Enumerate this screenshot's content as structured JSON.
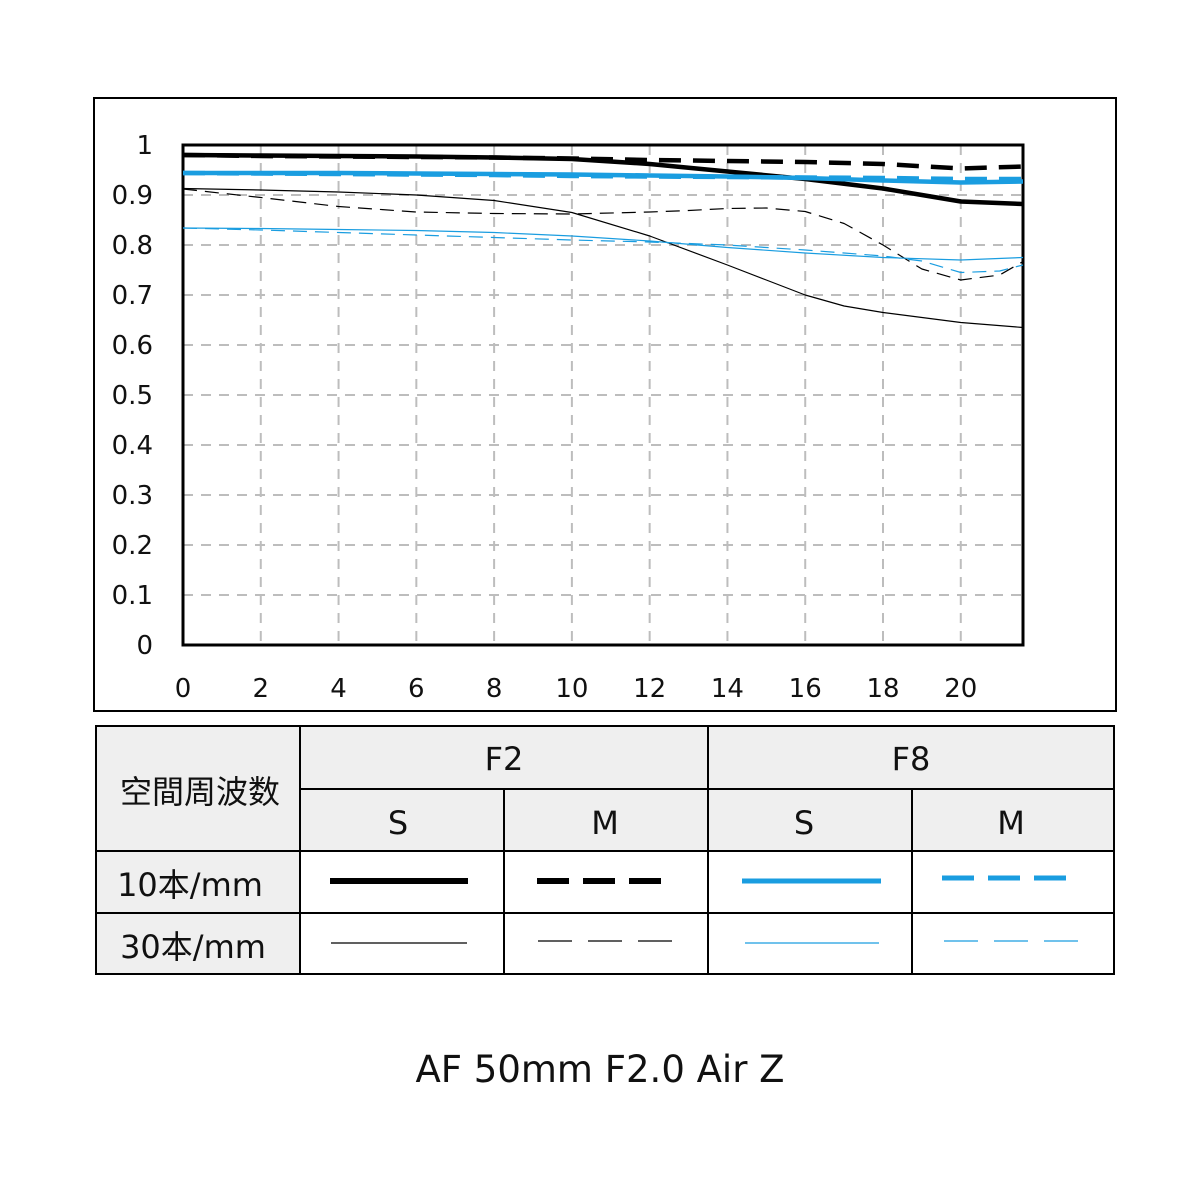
{
  "chart_data": {
    "type": "line",
    "title": "",
    "xlabel": "",
    "ylabel": "",
    "xlim": [
      0,
      21.6
    ],
    "ylim": [
      0,
      1
    ],
    "x_ticks": [
      "0",
      "2",
      "4",
      "6",
      "8",
      "10",
      "12",
      "14",
      "16",
      "18",
      "20"
    ],
    "y_ticks": [
      "0",
      "0.1",
      "0.2",
      "0.3",
      "0.4",
      "0.5",
      "0.6",
      "0.7",
      "0.8",
      "0.9",
      "1"
    ],
    "grid": true,
    "series": [
      {
        "aperture": "F2",
        "orientation": "S",
        "frequency": "10本/mm",
        "color": "#000000",
        "style": "solid",
        "x": [
          0,
          2,
          4,
          6,
          8,
          10,
          12,
          14,
          16,
          18,
          19,
          20,
          21.6
        ],
        "y": [
          0.98,
          0.979,
          0.978,
          0.977,
          0.975,
          0.972,
          0.962,
          0.947,
          0.932,
          0.913,
          0.9,
          0.887,
          0.882
        ]
      },
      {
        "aperture": "F2",
        "orientation": "M",
        "frequency": "10本/mm",
        "color": "#000000",
        "style": "dashed",
        "x": [
          0,
          2,
          4,
          6,
          8,
          10,
          12,
          14,
          16,
          18,
          20,
          21.6
        ],
        "y": [
          0.98,
          0.978,
          0.977,
          0.976,
          0.975,
          0.973,
          0.97,
          0.968,
          0.966,
          0.962,
          0.953,
          0.957
        ]
      },
      {
        "aperture": "F8",
        "orientation": "S",
        "frequency": "10本/mm",
        "color": "#1a9de0",
        "style": "solid",
        "x": [
          0,
          2,
          4,
          6,
          8,
          10,
          12,
          14,
          16,
          18,
          20,
          21.6
        ],
        "y": [
          0.944,
          0.944,
          0.944,
          0.943,
          0.942,
          0.941,
          0.939,
          0.937,
          0.934,
          0.929,
          0.925,
          0.927
        ]
      },
      {
        "aperture": "F8",
        "orientation": "M",
        "frequency": "10本/mm",
        "color": "#1a9de0",
        "style": "dashed",
        "x": [
          0,
          2,
          4,
          6,
          8,
          10,
          12,
          14,
          16,
          18,
          20,
          21.6
        ],
        "y": [
          0.944,
          0.943,
          0.942,
          0.941,
          0.94,
          0.938,
          0.937,
          0.936,
          0.935,
          0.934,
          0.932,
          0.932
        ]
      },
      {
        "aperture": "F2",
        "orientation": "S",
        "frequency": "30本/mm",
        "color": "#000000",
        "style": "solid",
        "x": [
          0,
          2,
          4,
          6,
          8,
          10,
          12,
          14,
          15,
          16,
          17,
          18,
          20,
          21.6
        ],
        "y": [
          0.913,
          0.91,
          0.906,
          0.9,
          0.889,
          0.865,
          0.818,
          0.76,
          0.73,
          0.7,
          0.678,
          0.665,
          0.645,
          0.635
        ]
      },
      {
        "aperture": "F2",
        "orientation": "M",
        "frequency": "30本/mm",
        "color": "#000000",
        "style": "dashed",
        "x": [
          0,
          2,
          4,
          6,
          8,
          10,
          12,
          13,
          14,
          15,
          16,
          17,
          18,
          19,
          20,
          21,
          21.6
        ],
        "y": [
          0.912,
          0.895,
          0.877,
          0.866,
          0.863,
          0.862,
          0.866,
          0.869,
          0.873,
          0.874,
          0.867,
          0.843,
          0.8,
          0.752,
          0.73,
          0.74,
          0.767
        ]
      },
      {
        "aperture": "F8",
        "orientation": "S",
        "frequency": "30本/mm",
        "color": "#1a9de0",
        "style": "solid",
        "x": [
          0,
          2,
          4,
          6,
          8,
          10,
          12,
          14,
          16,
          18,
          20,
          21.6
        ],
        "y": [
          0.834,
          0.833,
          0.831,
          0.829,
          0.825,
          0.818,
          0.808,
          0.795,
          0.784,
          0.775,
          0.77,
          0.775
        ]
      },
      {
        "aperture": "F8",
        "orientation": "M",
        "frequency": "30本/mm",
        "color": "#1a9de0",
        "style": "dashed",
        "x": [
          0,
          2,
          4,
          6,
          8,
          10,
          12,
          14,
          16,
          18,
          19,
          20,
          21,
          21.6
        ],
        "y": [
          0.834,
          0.83,
          0.825,
          0.82,
          0.815,
          0.81,
          0.806,
          0.8,
          0.79,
          0.778,
          0.768,
          0.745,
          0.748,
          0.76
        ]
      }
    ]
  },
  "legend": {
    "row_header": "空間周波数",
    "apertures": [
      "F2",
      "F8"
    ],
    "orientations": [
      "S",
      "M",
      "S",
      "M"
    ],
    "frequencies": [
      "10本/mm",
      "30本/mm"
    ]
  },
  "caption": "AF 50mm F2.0 Air Z"
}
